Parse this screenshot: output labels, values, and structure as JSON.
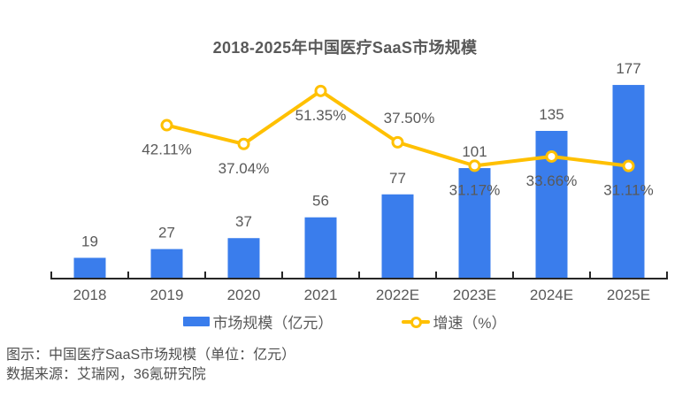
{
  "title": "2018-2025年中国医疗SaaS市场规模",
  "chart_data": {
    "type": "bar-line-combo",
    "categories": [
      "2018",
      "2019",
      "2020",
      "2021",
      "2022E",
      "2023E",
      "2024E",
      "2025E"
    ],
    "series": [
      {
        "name": "市场规模（亿元）",
        "type": "bar",
        "color": "#3A7DEC",
        "values": [
          19,
          27,
          37,
          56,
          77,
          101,
          135,
          177
        ]
      },
      {
        "name": "增速（%）",
        "type": "line",
        "color": "#FFC000",
        "marker_fill": "#FFFFFF",
        "values": [
          null,
          42.11,
          37.04,
          51.35,
          37.5,
          31.17,
          33.66,
          31.11
        ],
        "value_labels": [
          "",
          "42.11%",
          "37.04%",
          "51.35%",
          "37.50%",
          "31.17%",
          "33.66%",
          "31.11%"
        ]
      }
    ],
    "title": "2018-2025年中国医疗SaaS市场规模",
    "xlabel": "",
    "ylabel": "",
    "bar_axis_range": [
      0,
      210
    ],
    "line_axis_range": [
      0,
      62
    ],
    "grid": false,
    "y_axes_visible": false,
    "legend_position": "bottom",
    "background": "#FFFFFF",
    "axis_color": "#262626",
    "label_color": "#595959"
  },
  "captions": [
    "图示：中国医疗SaaS市场规模（单位：亿元）",
    "数据来源：艾瑞网，36氪研究院"
  ]
}
